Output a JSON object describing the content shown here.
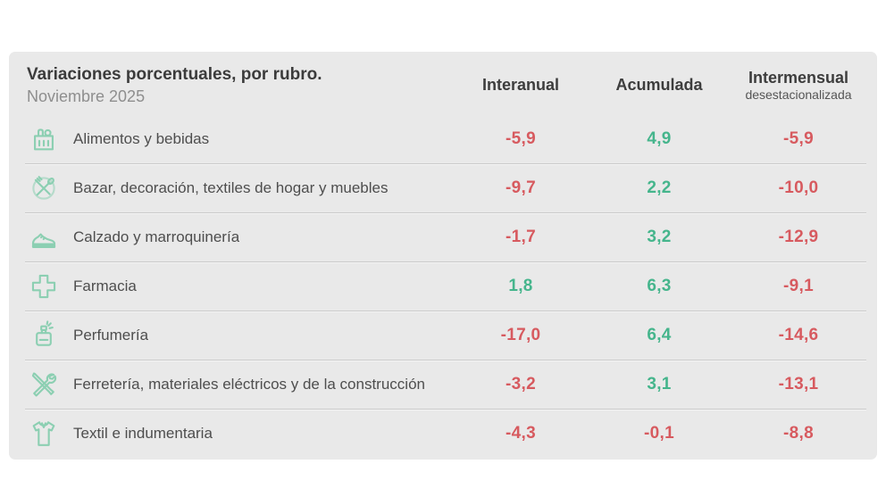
{
  "panel": {
    "title": "Variaciones porcentuales, por rubro.",
    "subtitle": "Noviembre 2025"
  },
  "columns": [
    {
      "label": "Interanual",
      "sublabel": ""
    },
    {
      "label": "Acumulada",
      "sublabel": ""
    },
    {
      "label": "Intermensual",
      "sublabel": "desestacionalizada"
    }
  ],
  "rows": [
    {
      "icon": "groceries-icon",
      "label": "Alimentos y bebidas",
      "values": [
        "-5,9",
        "4,9",
        "-5,9"
      ]
    },
    {
      "icon": "cutlery-icon",
      "label": "Bazar, decoración, textiles de hogar y muebles",
      "values": [
        "-9,7",
        "2,2",
        "-10,0"
      ]
    },
    {
      "icon": "shoe-icon",
      "label": "Calzado y marroquinería",
      "values": [
        "-1,7",
        "3,2",
        "-12,9"
      ]
    },
    {
      "icon": "pharmacy-cross-icon",
      "label": "Farmacia",
      "values": [
        "1,8",
        "6,3",
        "-9,1"
      ]
    },
    {
      "icon": "perfume-icon",
      "label": "Perfumería",
      "values": [
        "-17,0",
        "6,4",
        "-14,6"
      ]
    },
    {
      "icon": "tools-icon",
      "label": "Ferretería, materiales eléctricos y de la construcción",
      "values": [
        "-3,2",
        "3,1",
        "-13,1"
      ]
    },
    {
      "icon": "tshirt-icon",
      "label": "Textil e indumentaria",
      "values": [
        "-4,3",
        "-0,1",
        "-8,8"
      ]
    }
  ],
  "colors": {
    "negative": "#d75a5f",
    "positive": "#45b58c",
    "icon": "#8ccfb2",
    "panel_bg": "#e9e9e9"
  },
  "chart_data": {
    "type": "table",
    "title": "Variaciones porcentuales, por rubro.",
    "subtitle": "Noviembre 2025",
    "columns": [
      "Interanual",
      "Acumulada",
      "Intermensual desestacionalizada"
    ],
    "rows": [
      {
        "rubro": "Alimentos y bebidas",
        "interanual": -5.9,
        "acumulada": 4.9,
        "intermensual_desestacionalizada": -5.9
      },
      {
        "rubro": "Bazar, decoración, textiles de hogar y muebles",
        "interanual": -9.7,
        "acumulada": 2.2,
        "intermensual_desestacionalizada": -10.0
      },
      {
        "rubro": "Calzado y marroquinería",
        "interanual": -1.7,
        "acumulada": 3.2,
        "intermensual_desestacionalizada": -12.9
      },
      {
        "rubro": "Farmacia",
        "interanual": 1.8,
        "acumulada": 6.3,
        "intermensual_desestacionalizada": -9.1
      },
      {
        "rubro": "Perfumería",
        "interanual": -17.0,
        "acumulada": 6.4,
        "intermensual_desestacionalizada": -14.6
      },
      {
        "rubro": "Ferretería, materiales eléctricos y de la construcción",
        "interanual": -3.2,
        "acumulada": 3.1,
        "intermensual_desestacionalizada": -13.1
      },
      {
        "rubro": "Textil e indumentaria",
        "interanual": -4.3,
        "acumulada": -0.1,
        "intermensual_desestacionalizada": -8.8
      }
    ],
    "value_unit": "percent",
    "decimal_separator": ",",
    "negative_color": "#d75a5f",
    "positive_color": "#45b58c"
  }
}
